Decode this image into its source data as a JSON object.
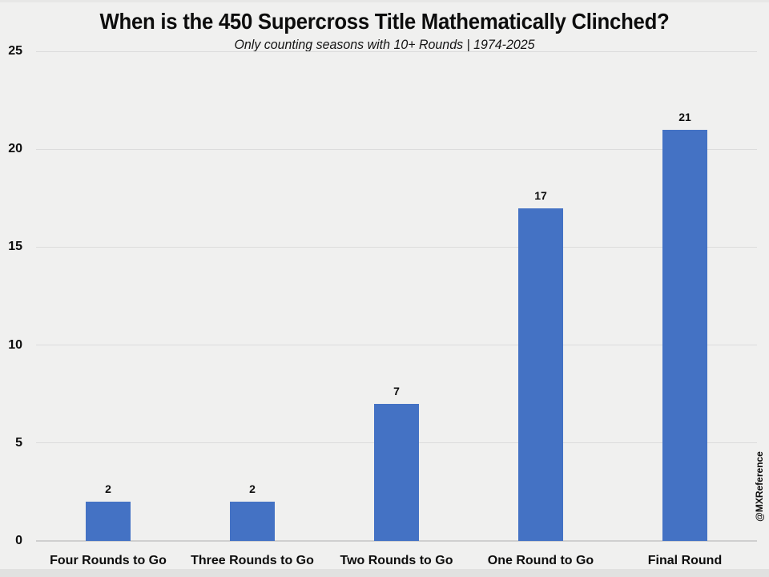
{
  "page": {
    "background_color": "#f0f0ef",
    "edge_shade_color": "#e1e1e0"
  },
  "watermark": "@MXReference",
  "chart_data": {
    "type": "bar",
    "title": "When is the 450 Supercross Title Mathematically Clinched?",
    "subtitle": "Only counting seasons with 10+ Rounds | 1974-2025",
    "categories": [
      "Four Rounds to Go",
      "Three Rounds to Go",
      "Two Rounds to Go",
      "One Round to Go",
      "Final Round"
    ],
    "values": [
      2,
      2,
      7,
      17,
      21
    ],
    "data_labels": [
      "2",
      "2",
      "7",
      "17",
      "21"
    ],
    "xlabel": "",
    "ylabel": "",
    "ylim": [
      0,
      25
    ],
    "yticks": [
      0,
      5,
      10,
      15,
      20,
      25
    ],
    "grid": true,
    "legend": false,
    "bar_color": "#4472c4",
    "gridline_color": "#dcdcdc",
    "axis_line_color": "#cfcfcf"
  }
}
